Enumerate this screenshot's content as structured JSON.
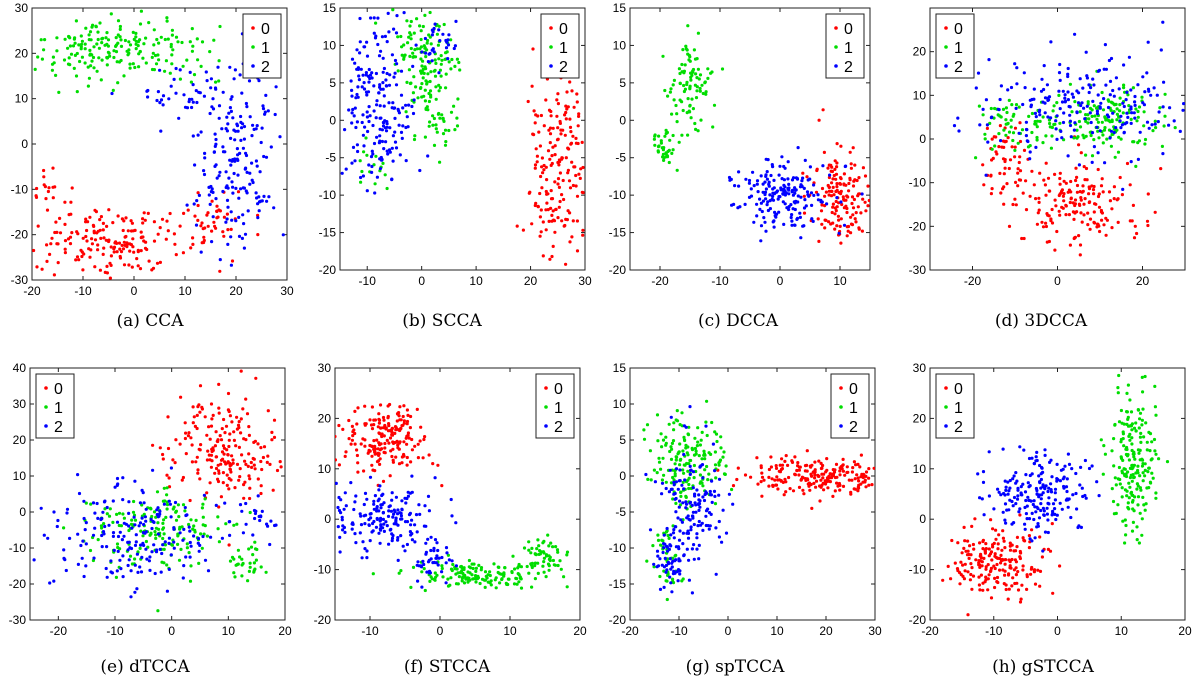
{
  "series_colors": {
    "0": "#ff0000",
    "1": "#00dd00",
    "2": "#0000ff"
  },
  "chart_data": [
    {
      "type": "scatter",
      "caption": "(a) CCA",
      "xlim": [
        -20,
        30
      ],
      "ylim": [
        -30,
        30
      ],
      "xticks": [
        -20,
        -10,
        0,
        10,
        20,
        30
      ],
      "yticks": [
        -30,
        -20,
        -10,
        0,
        10,
        20,
        30
      ],
      "legend": "top-right",
      "series": [
        {
          "name": "0",
          "clusters": [
            [
              -5,
              -22,
              7,
              4,
              180
            ],
            [
              15,
              -17,
              3,
              4,
              40
            ],
            [
              -17,
              -10,
              2,
              2,
              20
            ]
          ]
        },
        {
          "name": "1",
          "clusters": [
            [
              -3,
              21,
              9,
              4,
              200
            ]
          ]
        },
        {
          "name": "2",
          "clusters": [
            [
              20,
              -3,
              4,
              10,
              180
            ],
            [
              10,
              11,
              4,
              3,
              40
            ]
          ]
        }
      ]
    },
    {
      "type": "scatter",
      "caption": "(b) SCCA",
      "xlim": [
        -15,
        30
      ],
      "ylim": [
        -20,
        15
      ],
      "xticks": [
        -10,
        0,
        10,
        20,
        30
      ],
      "yticks": [
        -20,
        -15,
        -10,
        -5,
        0,
        5,
        10,
        15
      ],
      "legend": "top-right",
      "series": [
        {
          "name": "0",
          "clusters": [
            [
              25,
              -6,
              3,
              7,
              200
            ]
          ]
        },
        {
          "name": "1",
          "clusters": [
            [
              1,
              8,
              3,
              3,
              130
            ],
            [
              3,
              0,
              2,
              2,
              40
            ],
            [
              -10,
              -6,
              1.5,
              2,
              15
            ]
          ]
        },
        {
          "name": "2",
          "clusters": [
            [
              -8,
              2,
              3,
              6,
              200
            ],
            [
              3,
              11,
              2,
              2,
              30
            ]
          ]
        }
      ]
    },
    {
      "type": "scatter",
      "caption": "(c) DCCA",
      "xlim": [
        -25,
        15
      ],
      "ylim": [
        -20,
        15
      ],
      "xticks": [
        -20,
        -10,
        0,
        10
      ],
      "yticks": [
        -20,
        -15,
        -10,
        -5,
        0,
        5,
        10,
        15
      ],
      "legend": "top-right",
      "series": [
        {
          "name": "0",
          "clusters": [
            [
              10,
              -10,
              2.5,
              3.5,
              150
            ]
          ]
        },
        {
          "name": "1",
          "clusters": [
            [
              -15,
              5,
              2,
              3,
              90
            ],
            [
              -19,
              -4,
              1.5,
              1.5,
              40
            ]
          ]
        },
        {
          "name": "2",
          "clusters": [
            [
              1,
              -10,
              4,
              2.5,
              190
            ]
          ]
        }
      ]
    },
    {
      "type": "scatter",
      "caption": "(d) 3DCCA",
      "xlim": [
        -30,
        30
      ],
      "ylim": [
        -30,
        30
      ],
      "xticks": [
        -20,
        0,
        20
      ],
      "yticks": [
        -30,
        -20,
        -10,
        0,
        10,
        20
      ],
      "legend": "top-left",
      "series": [
        {
          "name": "0",
          "clusters": [
            [
              5,
              -15,
              7,
              5,
              170
            ],
            [
              -12,
              -5,
              3,
              5,
              60
            ]
          ]
        },
        {
          "name": "1",
          "clusters": [
            [
              12,
              5,
              6,
              4,
              140
            ],
            [
              -8,
              3,
              5,
              3,
              70
            ]
          ]
        },
        {
          "name": "2",
          "clusters": [
            [
              5,
              8,
              14,
              6,
              230
            ]
          ]
        }
      ]
    },
    {
      "type": "scatter",
      "caption": "(e) dTCCA",
      "xlim": [
        -25,
        20
      ],
      "ylim": [
        -30,
        40
      ],
      "xticks": [
        -20,
        -10,
        0,
        10,
        20
      ],
      "yticks": [
        -30,
        -20,
        -10,
        0,
        10,
        20,
        30,
        40
      ],
      "legend": "top-left",
      "series": [
        {
          "name": "0",
          "clusters": [
            [
              9,
              18,
              5,
              8,
              200
            ]
          ]
        },
        {
          "name": "1",
          "clusters": [
            [
              -3,
              -5,
              6,
              5,
              170
            ],
            [
              13,
              -14,
              2,
              3,
              30
            ]
          ]
        },
        {
          "name": "2",
          "clusters": [
            [
              -6,
              -6,
              8,
              7,
              200
            ],
            [
              15,
              -2,
              2,
              4,
              20
            ]
          ]
        }
      ]
    },
    {
      "type": "scatter",
      "caption": "(f) STCCA",
      "xlim": [
        -15,
        20
      ],
      "ylim": [
        -20,
        30
      ],
      "xticks": [
        -10,
        0,
        10,
        20
      ],
      "yticks": [
        -20,
        -10,
        0,
        10,
        20,
        30
      ],
      "legend": "top-right",
      "series": [
        {
          "name": "0",
          "clusters": [
            [
              -8,
              16,
              3.5,
              3.5,
              200
            ]
          ]
        },
        {
          "name": "1",
          "clusters": [
            [
              6,
              -11,
              5,
              1.3,
              150
            ],
            [
              15,
              -7,
              1.5,
              1.5,
              50
            ]
          ]
        },
        {
          "name": "2",
          "clusters": [
            [
              -8,
              0,
              4,
              3.5,
              180
            ],
            [
              -1,
              -8,
              1.5,
              2,
              40
            ]
          ]
        }
      ]
    },
    {
      "type": "scatter",
      "caption": "(g) spTCCA",
      "xlim": [
        -20,
        30
      ],
      "ylim": [
        -20,
        15
      ],
      "xticks": [
        -20,
        -10,
        0,
        10,
        20,
        30
      ],
      "yticks": [
        -20,
        -15,
        -10,
        -5,
        0,
        5,
        10,
        15
      ],
      "legend": "top-right",
      "series": [
        {
          "name": "0",
          "clusters": [
            [
              18,
              0,
              7,
              1.2,
              220
            ]
          ]
        },
        {
          "name": "1",
          "clusters": [
            [
              -8,
              2,
              4,
              3,
              170
            ],
            [
              -12,
              -11,
              1.5,
              3,
              40
            ]
          ]
        },
        {
          "name": "2",
          "clusters": [
            [
              -7,
              -5,
              3,
              5,
              150
            ],
            [
              -12,
              -12,
              1.5,
              2,
              50
            ]
          ]
        }
      ]
    },
    {
      "type": "scatter",
      "caption": "(h) gSTCCA",
      "xlim": [
        -20,
        20
      ],
      "ylim": [
        -20,
        30
      ],
      "xticks": [
        -20,
        -10,
        0,
        10,
        20
      ],
      "yticks": [
        -20,
        -10,
        0,
        10,
        20,
        30
      ],
      "legend": "top-left",
      "series": [
        {
          "name": "0",
          "clusters": [
            [
              -10,
              -8,
              3.5,
              3.5,
              200
            ]
          ]
        },
        {
          "name": "1",
          "clusters": [
            [
              12,
              12,
              1.8,
              7,
              200
            ]
          ]
        },
        {
          "name": "2",
          "clusters": [
            [
              -3,
              5,
              4,
              4,
              200
            ]
          ]
        }
      ]
    }
  ]
}
